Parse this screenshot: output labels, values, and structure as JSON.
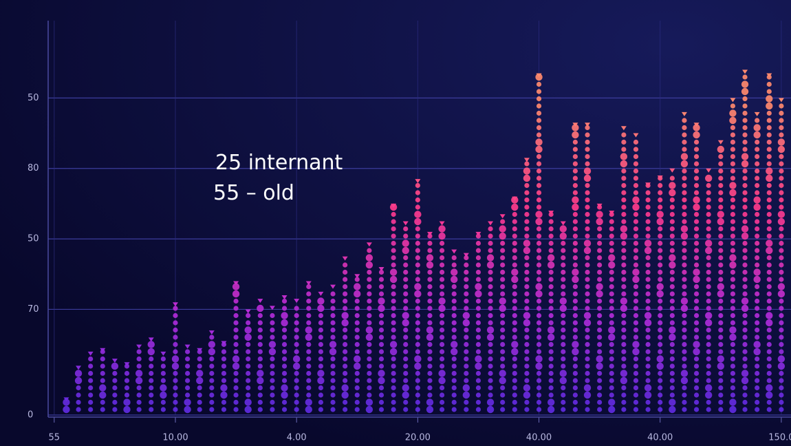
{
  "chart_data": {
    "type": "dot-column",
    "annotation": [
      "25 internant",
      "55 – old"
    ],
    "x": [
      1,
      2,
      3,
      4,
      5,
      6,
      7,
      8,
      9,
      10,
      11,
      12,
      13,
      14,
      15,
      16,
      17,
      18,
      19,
      20,
      21,
      22,
      23,
      24,
      25,
      26,
      27,
      28,
      29,
      30,
      31,
      32,
      33,
      34,
      35,
      36,
      37,
      38,
      39,
      40,
      41,
      42,
      43,
      44,
      45,
      46,
      47,
      48,
      49,
      50,
      51,
      52,
      53,
      54,
      55,
      56,
      57,
      58,
      59,
      60
    ],
    "values": [
      5,
      14,
      18,
      19,
      16,
      15,
      20,
      22,
      18,
      32,
      20,
      19,
      24,
      21,
      38,
      30,
      33,
      31,
      34,
      33,
      38,
      35,
      37,
      45,
      40,
      49,
      42,
      60,
      55,
      67,
      52,
      55,
      47,
      46,
      52,
      55,
      57,
      62,
      73,
      97,
      58,
      55,
      83,
      83,
      60,
      58,
      82,
      80,
      66,
      68,
      70,
      86,
      83,
      70,
      78,
      90,
      98,
      86,
      97,
      90
    ],
    "colors": [
      "#5a2be0",
      "#b42bd8",
      "#ff3a8c",
      "#ff8a6e"
    ],
    "xlim": [
      -0.5,
      60.8
    ],
    "xticks": [
      {
        "value": 0,
        "label": "55"
      },
      {
        "value": 10,
        "label": "10.00"
      },
      {
        "value": 20,
        "label": "4.00"
      },
      {
        "value": 30,
        "label": "20.00"
      },
      {
        "value": 40,
        "label": "40.00"
      },
      {
        "value": 50,
        "label": "40.00"
      },
      {
        "value": 60,
        "label": "150.0"
      }
    ],
    "ylim": [
      0,
      110
    ],
    "yticks": [
      0,
      {
        "value": 30,
        "label": "70"
      },
      {
        "value": 50,
        "label": "50"
      },
      {
        "value": 70,
        "label": "80"
      },
      {
        "value": 90,
        "label": "50"
      }
    ],
    "grid": true
  }
}
